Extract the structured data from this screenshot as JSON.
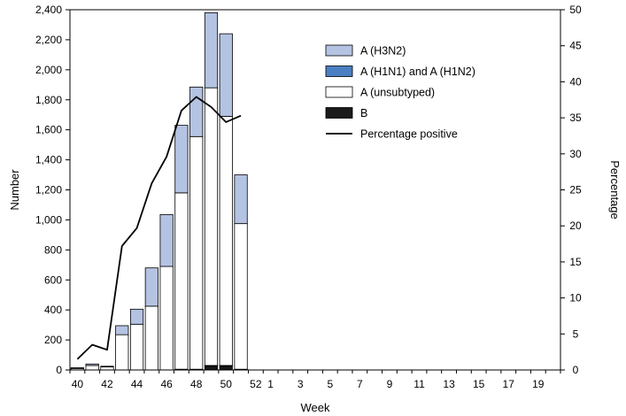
{
  "chart_data": {
    "type": "bar",
    "stacked": true,
    "x_categories": [
      "40",
      "41",
      "42",
      "43",
      "44",
      "45",
      "46",
      "47",
      "48",
      "49",
      "50",
      "51",
      "52",
      "1",
      "2",
      "3",
      "4",
      "5",
      "6",
      "7",
      "8",
      "9",
      "10",
      "11",
      "12",
      "13",
      "14",
      "15",
      "16",
      "17",
      "18",
      "19",
      "20"
    ],
    "x_tick_labels": [
      "40",
      "42",
      "44",
      "46",
      "48",
      "50",
      "52",
      "1",
      "3",
      "5",
      "7",
      "9",
      "11",
      "13",
      "15",
      "17",
      "19"
    ],
    "xlabel": "Week",
    "ylabel": "Number",
    "y2label": "Percentage",
    "ylim": [
      0,
      2400
    ],
    "y_ticks": [
      0,
      200,
      400,
      600,
      800,
      1000,
      1200,
      1400,
      1600,
      1800,
      2000,
      2200,
      2400
    ],
    "y_tick_labels": [
      "0",
      "200",
      "400",
      "600",
      "800",
      "1,000",
      "1,200",
      "1,400",
      "1,600",
      "1,800",
      "2,000",
      "2,200",
      "2,400"
    ],
    "y2lim": [
      0,
      50
    ],
    "y2_ticks": [
      0,
      5,
      10,
      15,
      20,
      25,
      30,
      35,
      40,
      45,
      50
    ],
    "y2_tick_labels": [
      "0",
      "5",
      "10",
      "15",
      "20",
      "25",
      "30",
      "35",
      "40",
      "45",
      "50"
    ],
    "grid": false,
    "legend_position": "top-right",
    "series": [
      {
        "name": "B",
        "kind": "bar",
        "color": "#1a1a1a",
        "values": [
          0,
          0,
          0,
          0,
          0,
          0,
          0,
          0,
          0,
          25,
          25,
          5,
          null,
          null,
          null,
          null,
          null,
          null,
          null,
          null,
          null,
          null,
          null,
          null,
          null,
          null,
          null,
          null,
          null,
          null,
          null,
          null,
          null
        ]
      },
      {
        "name": "A (H1N1) and A (H1N2)",
        "kind": "bar",
        "color": "#4a7fc1",
        "values": [
          0,
          0,
          0,
          0,
          0,
          0,
          0,
          5,
          5,
          5,
          5,
          0,
          null,
          null,
          null,
          null,
          null,
          null,
          null,
          null,
          null,
          null,
          null,
          null,
          null,
          null,
          null,
          null,
          null,
          null,
          null,
          null,
          null
        ]
      },
      {
        "name": "A (unsubtyped)",
        "kind": "bar",
        "color": "#ffffff",
        "values": [
          10,
          30,
          20,
          235,
          305,
          425,
          690,
          1175,
          1550,
          1850,
          1660,
          970,
          null,
          null,
          null,
          null,
          null,
          null,
          null,
          null,
          null,
          null,
          null,
          null,
          null,
          null,
          null,
          null,
          null,
          null,
          null,
          null,
          null
        ]
      },
      {
        "name": "A (H3N2)",
        "kind": "bar",
        "color": "#b4c3e2",
        "values": [
          5,
          10,
          5,
          60,
          100,
          255,
          345,
          450,
          330,
          500,
          550,
          325,
          null,
          null,
          null,
          null,
          null,
          null,
          null,
          null,
          null,
          null,
          null,
          null,
          null,
          null,
          null,
          null,
          null,
          null,
          null,
          null,
          null
        ]
      },
      {
        "name": "Percentage positive",
        "kind": "line",
        "axis": "right",
        "color": "#000000",
        "values": [
          1.5,
          3.5,
          2.8,
          17.2,
          19.7,
          25.9,
          29.6,
          36.0,
          37.9,
          36.5,
          34.4,
          35.3,
          null,
          null,
          null,
          null,
          null,
          null,
          null,
          null,
          null,
          null,
          null,
          null,
          null,
          null,
          null,
          null,
          null,
          null,
          null,
          null,
          null
        ]
      }
    ],
    "legend_order": [
      "A (H3N2)",
      "A (H1N1) and A (H1N2)",
      "A (unsubtyped)",
      "B",
      "Percentage positive"
    ]
  }
}
